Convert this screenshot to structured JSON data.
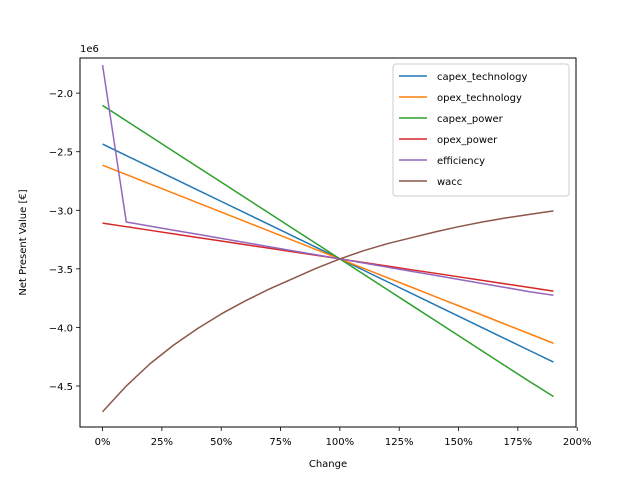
{
  "chart_data": {
    "type": "line",
    "title": "",
    "xlabel": "Change",
    "ylabel": "Net Present Value [€]",
    "y_offset_label": "1e6",
    "x": [
      0,
      0.1,
      0.2,
      0.3,
      0.4,
      0.5,
      0.6,
      0.7,
      0.8,
      0.9,
      1.0,
      1.1,
      1.2,
      1.3,
      1.4,
      1.5,
      1.6,
      1.7,
      1.8,
      1.9
    ],
    "xlim": [
      -0.095,
      1.995
    ],
    "ylim": [
      -4.85,
      -1.7
    ],
    "x_ticks": [
      0,
      0.25,
      0.5,
      0.75,
      1.0,
      1.25,
      1.5,
      1.75,
      2.0
    ],
    "x_tick_labels": [
      "0%",
      "25%",
      "50%",
      "75%",
      "100%",
      "125%",
      "150%",
      "175%",
      "200%"
    ],
    "y_ticks": [
      -4.5,
      -4.0,
      -3.5,
      -3.0,
      -2.5,
      -2.0
    ],
    "y_tick_labels": [
      "−4.5",
      "−4.0",
      "−3.5",
      "−3.0",
      "−2.5",
      "−2.0"
    ],
    "grid": false,
    "legend_position": "top-right",
    "series": [
      {
        "name": "capex_technology",
        "color": "#1f77b4",
        "values": [
          -2.435,
          -2.533,
          -2.63,
          -2.728,
          -2.826,
          -2.924,
          -3.022,
          -3.12,
          -3.218,
          -3.316,
          -3.414,
          -3.512,
          -3.61,
          -3.708,
          -3.806,
          -3.904,
          -4.002,
          -4.1,
          -4.198,
          -4.296
        ]
      },
      {
        "name": "opex_technology",
        "color": "#ff7f0e",
        "values": [
          -2.615,
          -2.695,
          -2.775,
          -2.855,
          -2.935,
          -3.015,
          -3.095,
          -3.175,
          -3.255,
          -3.335,
          -3.415,
          -3.495,
          -3.575,
          -3.655,
          -3.735,
          -3.815,
          -3.895,
          -3.975,
          -4.055,
          -4.135
        ]
      },
      {
        "name": "capex_power",
        "color": "#2ca02c",
        "values": [
          -2.105,
          -2.236,
          -2.367,
          -2.498,
          -2.629,
          -2.76,
          -2.891,
          -3.022,
          -3.153,
          -3.284,
          -3.415,
          -3.546,
          -3.677,
          -3.808,
          -3.939,
          -4.07,
          -4.201,
          -4.332,
          -4.463,
          -4.59
        ]
      },
      {
        "name": "opex_power",
        "color": "#d62728",
        "values": [
          -3.11,
          -3.14,
          -3.171,
          -3.201,
          -3.232,
          -3.262,
          -3.293,
          -3.323,
          -3.354,
          -3.384,
          -3.415,
          -3.446,
          -3.476,
          -3.507,
          -3.537,
          -3.568,
          -3.598,
          -3.629,
          -3.659,
          -3.69
        ]
      },
      {
        "name": "efficiency",
        "color": "#9467bd",
        "values": [
          -1.76,
          -3.1,
          -3.135,
          -3.17,
          -3.205,
          -3.24,
          -3.275,
          -3.31,
          -3.345,
          -3.38,
          -3.415,
          -3.45,
          -3.485,
          -3.52,
          -3.555,
          -3.59,
          -3.625,
          -3.66,
          -3.695,
          -3.725
        ]
      },
      {
        "name": "wacc",
        "color": "#8c564b",
        "values": [
          -4.72,
          -4.5,
          -4.31,
          -4.15,
          -4.01,
          -3.885,
          -3.775,
          -3.675,
          -3.585,
          -3.495,
          -3.415,
          -3.345,
          -3.285,
          -3.235,
          -3.185,
          -3.14,
          -3.1,
          -3.065,
          -3.035,
          -3.005
        ]
      }
    ]
  }
}
